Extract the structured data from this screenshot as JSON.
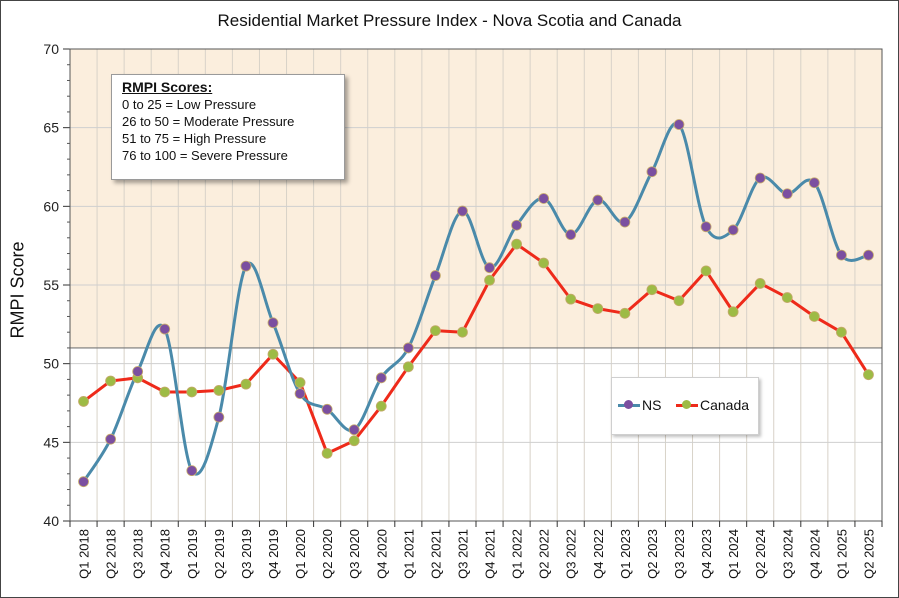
{
  "title": "Residential Market Pressure Index - Nova Scotia and Canada",
  "ylabel": "RMPI Score",
  "scores_box": {
    "header": "RMPI Scores:",
    "lines": [
      "0 to 25 = Low Pressure",
      "26 to 50 = Moderate Pressure",
      "51 to 75 = High Pressure",
      "76 to 100 = Severe Pressure"
    ]
  },
  "colors": {
    "ns_line": "#4a8aaa",
    "ns_marker": "#7b4fa0",
    "canada_line": "#ee2a1a",
    "canada_marker": "#9dbb45",
    "high_pressure_band": "#fbeedd"
  },
  "chart_data": {
    "type": "line",
    "title": "Residential Market Pressure Index - Nova Scotia and Canada",
    "xlabel": "",
    "ylabel": "RMPI Score",
    "ylim": [
      40,
      70
    ],
    "yticks": [
      40,
      45,
      50,
      55,
      60,
      65,
      70
    ],
    "grid": true,
    "legend_position": "bottom-right",
    "shaded_region": {
      "from": 51,
      "to": 70
    },
    "categories": [
      "Q1 2018",
      "Q2 2018",
      "Q3 2018",
      "Q4 2018",
      "Q1 2019",
      "Q2 2019",
      "Q3 2019",
      "Q4 2019",
      "Q1 2020",
      "Q2 2020",
      "Q3 2020",
      "Q4 2020",
      "Q1 2021",
      "Q2 2021",
      "Q3 2021",
      "Q4 2021",
      "Q1 2022",
      "Q2 2022",
      "Q3 2022",
      "Q4 2022",
      "Q1 2023",
      "Q2 2023",
      "Q3 2023",
      "Q4 2023",
      "Q1 2024",
      "Q2 2024",
      "Q3 2024",
      "Q4 2024",
      "Q1 2025",
      "Q2 2025"
    ],
    "series": [
      {
        "name": "NS",
        "smooth": true,
        "values": [
          42.5,
          45.2,
          49.5,
          52.2,
          43.2,
          46.6,
          56.2,
          52.6,
          48.1,
          47.1,
          45.8,
          49.1,
          51.0,
          55.6,
          59.7,
          56.1,
          58.8,
          60.5,
          58.2,
          60.4,
          59.0,
          62.2,
          65.2,
          58.7,
          58.5,
          61.8,
          60.8,
          61.5,
          56.9,
          56.9
        ]
      },
      {
        "name": "Canada",
        "smooth": false,
        "values": [
          47.6,
          48.9,
          49.1,
          48.2,
          48.2,
          48.3,
          48.7,
          50.6,
          48.8,
          44.3,
          45.1,
          47.3,
          49.8,
          52.1,
          52.0,
          55.3,
          57.6,
          56.4,
          54.1,
          53.5,
          53.2,
          54.7,
          54.0,
          55.9,
          53.3,
          55.1,
          54.2,
          53.0,
          52.0,
          49.3
        ]
      }
    ]
  }
}
